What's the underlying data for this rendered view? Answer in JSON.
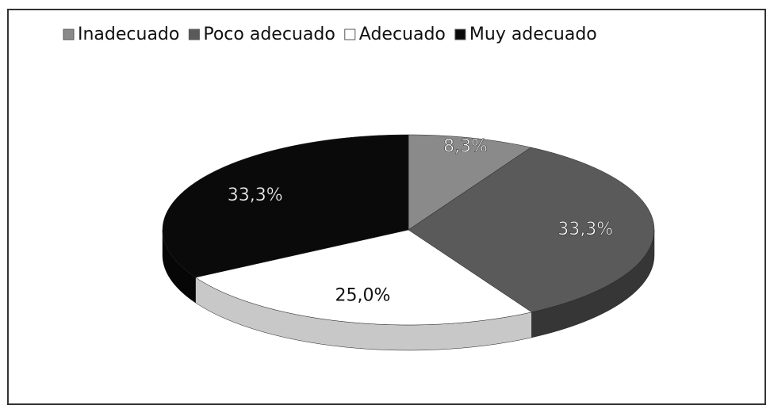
{
  "chart_data": {
    "type": "pie3d",
    "categories": [
      "Inadecuado",
      "Poco adecuado",
      "Adecuado",
      "Muy adecuado"
    ],
    "values": [
      8.3,
      33.3,
      25.0,
      33.3
    ],
    "value_labels": [
      "8,3%",
      "33,3%",
      "25,0%",
      "33,3%"
    ],
    "colors": [
      "#8a8a8a",
      "#5a5a5a",
      "#ffffff",
      "#0a0a0a"
    ],
    "legend": "top"
  }
}
